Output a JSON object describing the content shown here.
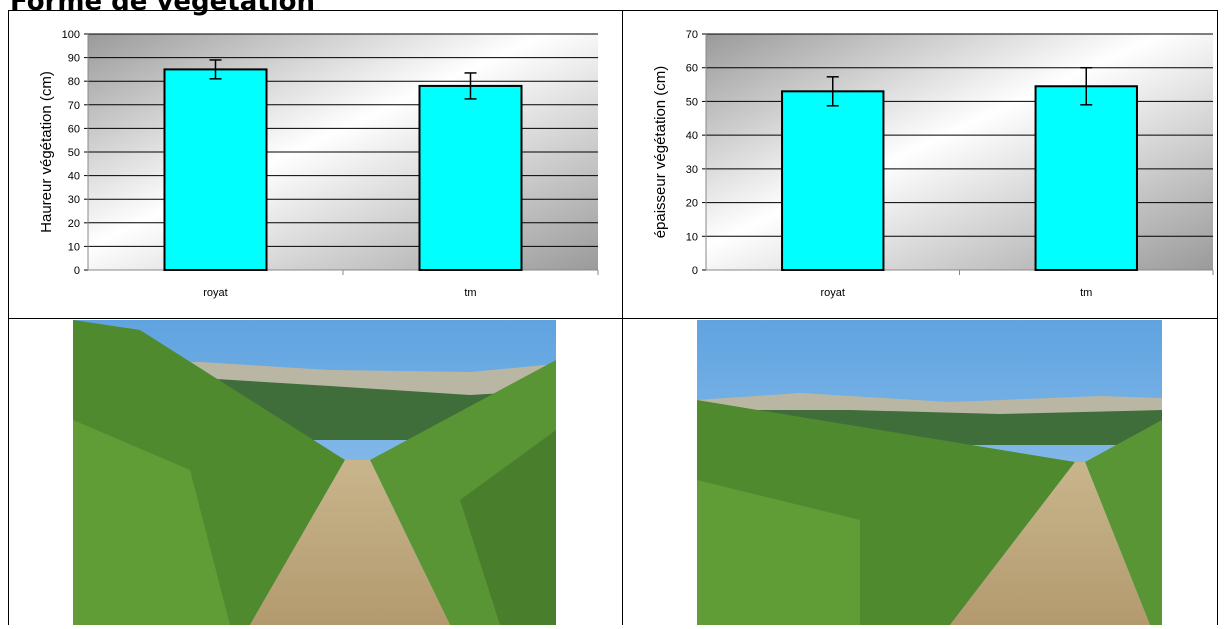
{
  "title": "Forme de végétation",
  "chart_data": [
    {
      "type": "bar",
      "ylabel": "Haureur végétation (cm)",
      "categories": [
        "royat",
        "tm"
      ],
      "series": [
        {
          "color": "#00ffff",
          "values": [
            85,
            78
          ],
          "errors": [
            4,
            5.5
          ]
        }
      ],
      "ylim": [
        0,
        100
      ],
      "yticks": [
        0,
        10,
        20,
        30,
        40,
        50,
        60,
        70,
        80,
        90,
        100
      ],
      "grid": true
    },
    {
      "type": "bar",
      "ylabel": "épaisseur végétation (cm)",
      "categories": [
        "royat",
        "tm"
      ],
      "series": [
        {
          "color": "#00ffff",
          "values": [
            53,
            54.5
          ],
          "errors": [
            4.3,
            5.5
          ]
        }
      ],
      "ylim": [
        0,
        70
      ],
      "yticks": [
        0,
        10,
        20,
        30,
        40,
        50,
        60,
        70
      ],
      "grid": true
    }
  ]
}
